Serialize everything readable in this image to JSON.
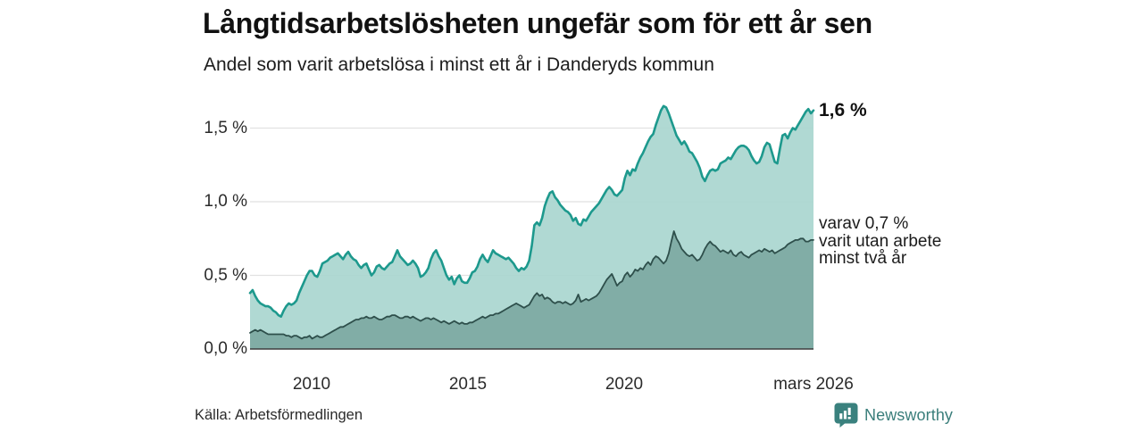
{
  "header": {
    "title": "Långtidsarbetslösheten ungefär som för ett år sen",
    "subtitle": "Andel som varit arbetslösa i minst ett år i Danderyds kommun"
  },
  "footer": {
    "source": "Källa: Arbetsförmedlingen",
    "brand": "Newsworthy",
    "brand_color": "#3a7e7b"
  },
  "chart_data": {
    "type": "area",
    "title": "Långtidsarbetslösheten ungefär som för ett år sen",
    "subtitle": "Andel som varit arbetslösa i minst ett år i Danderyds kommun",
    "unit": "%",
    "frequency": "monthly",
    "x_start": "2008-01",
    "x_end": "2026-03",
    "ylim": [
      0,
      1.75
    ],
    "grid": "horizontal",
    "yticks": [
      {
        "label": "1,5 %",
        "value": 1.5
      },
      {
        "label": "1,0 %",
        "value": 1.0
      },
      {
        "label": "0,5 %",
        "value": 0.5
      },
      {
        "label": "0,0 %",
        "value": 0.0
      }
    ],
    "xticks": [
      {
        "label": "2010",
        "month_index": 24
      },
      {
        "label": "2015",
        "month_index": 84
      },
      {
        "label": "2020",
        "month_index": 144
      },
      {
        "label": "mars 2026",
        "month_index": 218
      }
    ],
    "annotations": {
      "series1_end_label": "1,6 %",
      "series2_note_lines": [
        "varav 0,7 %",
        "varit utan arbete",
        "minst två år"
      ]
    },
    "series": [
      {
        "id": "arbetslosa-minst-ett-ar",
        "line_color": "#1d998d",
        "fill_color": "#a9d6cf",
        "end_value": 1.6,
        "values": [
          0.38,
          0.4,
          0.36,
          0.33,
          0.31,
          0.3,
          0.29,
          0.29,
          0.28,
          0.26,
          0.25,
          0.23,
          0.22,
          0.26,
          0.29,
          0.31,
          0.3,
          0.31,
          0.33,
          0.38,
          0.42,
          0.46,
          0.5,
          0.53,
          0.53,
          0.5,
          0.49,
          0.53,
          0.58,
          0.59,
          0.6,
          0.62,
          0.63,
          0.64,
          0.65,
          0.63,
          0.61,
          0.64,
          0.66,
          0.63,
          0.61,
          0.6,
          0.57,
          0.55,
          0.57,
          0.58,
          0.54,
          0.5,
          0.52,
          0.56,
          0.57,
          0.55,
          0.54,
          0.56,
          0.58,
          0.59,
          0.63,
          0.67,
          0.63,
          0.61,
          0.59,
          0.57,
          0.58,
          0.6,
          0.58,
          0.55,
          0.49,
          0.5,
          0.52,
          0.55,
          0.61,
          0.65,
          0.67,
          0.63,
          0.6,
          0.55,
          0.5,
          0.47,
          0.49,
          0.44,
          0.48,
          0.5,
          0.46,
          0.45,
          0.45,
          0.48,
          0.52,
          0.53,
          0.56,
          0.61,
          0.64,
          0.61,
          0.59,
          0.63,
          0.67,
          0.65,
          0.64,
          0.63,
          0.62,
          0.61,
          0.62,
          0.6,
          0.58,
          0.55,
          0.53,
          0.55,
          0.54,
          0.56,
          0.6,
          0.7,
          0.84,
          0.86,
          0.84,
          0.89,
          0.97,
          1.02,
          1.06,
          1.07,
          1.03,
          1.01,
          0.98,
          0.96,
          0.94,
          0.93,
          0.91,
          0.87,
          0.89,
          0.85,
          0.84,
          0.88,
          0.87,
          0.9,
          0.93,
          0.95,
          0.97,
          0.99,
          1.02,
          1.05,
          1.08,
          1.1,
          1.08,
          1.05,
          1.04,
          1.06,
          1.08,
          1.16,
          1.21,
          1.18,
          1.22,
          1.21,
          1.26,
          1.3,
          1.33,
          1.37,
          1.41,
          1.44,
          1.46,
          1.52,
          1.57,
          1.62,
          1.65,
          1.64,
          1.6,
          1.55,
          1.5,
          1.45,
          1.42,
          1.39,
          1.41,
          1.38,
          1.34,
          1.33,
          1.3,
          1.27,
          1.23,
          1.17,
          1.14,
          1.18,
          1.21,
          1.22,
          1.21,
          1.22,
          1.26,
          1.27,
          1.28,
          1.3,
          1.29,
          1.32,
          1.35,
          1.37,
          1.38,
          1.38,
          1.37,
          1.35,
          1.31,
          1.28,
          1.26,
          1.27,
          1.31,
          1.37,
          1.4,
          1.39,
          1.33,
          1.27,
          1.26,
          1.36,
          1.45,
          1.46,
          1.43,
          1.47,
          1.5,
          1.49,
          1.52,
          1.55,
          1.58,
          1.61,
          1.63,
          1.6,
          1.62
        ]
      },
      {
        "id": "utan-arbete-minst-tva-ar",
        "line_color": "#2e4f4b",
        "fill_color": "#7daaa3",
        "end_value": 0.7,
        "values": [
          0.11,
          0.12,
          0.13,
          0.12,
          0.13,
          0.12,
          0.11,
          0.1,
          0.1,
          0.1,
          0.1,
          0.1,
          0.1,
          0.1,
          0.09,
          0.09,
          0.08,
          0.09,
          0.09,
          0.08,
          0.07,
          0.08,
          0.08,
          0.09,
          0.07,
          0.08,
          0.09,
          0.08,
          0.08,
          0.09,
          0.1,
          0.11,
          0.12,
          0.13,
          0.14,
          0.15,
          0.15,
          0.16,
          0.17,
          0.18,
          0.19,
          0.2,
          0.2,
          0.21,
          0.21,
          0.22,
          0.21,
          0.21,
          0.22,
          0.21,
          0.2,
          0.2,
          0.21,
          0.22,
          0.22,
          0.23,
          0.23,
          0.22,
          0.21,
          0.21,
          0.22,
          0.22,
          0.21,
          0.22,
          0.21,
          0.2,
          0.19,
          0.2,
          0.21,
          0.21,
          0.2,
          0.21,
          0.2,
          0.19,
          0.18,
          0.19,
          0.18,
          0.17,
          0.18,
          0.19,
          0.18,
          0.17,
          0.18,
          0.17,
          0.17,
          0.18,
          0.18,
          0.19,
          0.2,
          0.21,
          0.22,
          0.21,
          0.22,
          0.23,
          0.23,
          0.24,
          0.24,
          0.25,
          0.26,
          0.27,
          0.28,
          0.29,
          0.3,
          0.31,
          0.3,
          0.29,
          0.28,
          0.29,
          0.3,
          0.33,
          0.36,
          0.38,
          0.36,
          0.37,
          0.34,
          0.35,
          0.34,
          0.32,
          0.31,
          0.32,
          0.32,
          0.31,
          0.32,
          0.31,
          0.3,
          0.31,
          0.33,
          0.37,
          0.32,
          0.33,
          0.34,
          0.33,
          0.34,
          0.35,
          0.36,
          0.38,
          0.41,
          0.44,
          0.47,
          0.49,
          0.51,
          0.47,
          0.43,
          0.45,
          0.46,
          0.5,
          0.52,
          0.49,
          0.51,
          0.54,
          0.53,
          0.55,
          0.54,
          0.57,
          0.59,
          0.57,
          0.61,
          0.63,
          0.62,
          0.6,
          0.58,
          0.6,
          0.65,
          0.73,
          0.8,
          0.75,
          0.72,
          0.68,
          0.66,
          0.64,
          0.63,
          0.64,
          0.62,
          0.6,
          0.61,
          0.64,
          0.68,
          0.71,
          0.73,
          0.71,
          0.7,
          0.68,
          0.66,
          0.67,
          0.66,
          0.65,
          0.67,
          0.64,
          0.63,
          0.65,
          0.66,
          0.64,
          0.63,
          0.62,
          0.64,
          0.65,
          0.66,
          0.67,
          0.66,
          0.68,
          0.67,
          0.66,
          0.67,
          0.65,
          0.66,
          0.67,
          0.68,
          0.69,
          0.71,
          0.72,
          0.73,
          0.74,
          0.74,
          0.75,
          0.75,
          0.73,
          0.73,
          0.74,
          0.74
        ]
      }
    ]
  }
}
